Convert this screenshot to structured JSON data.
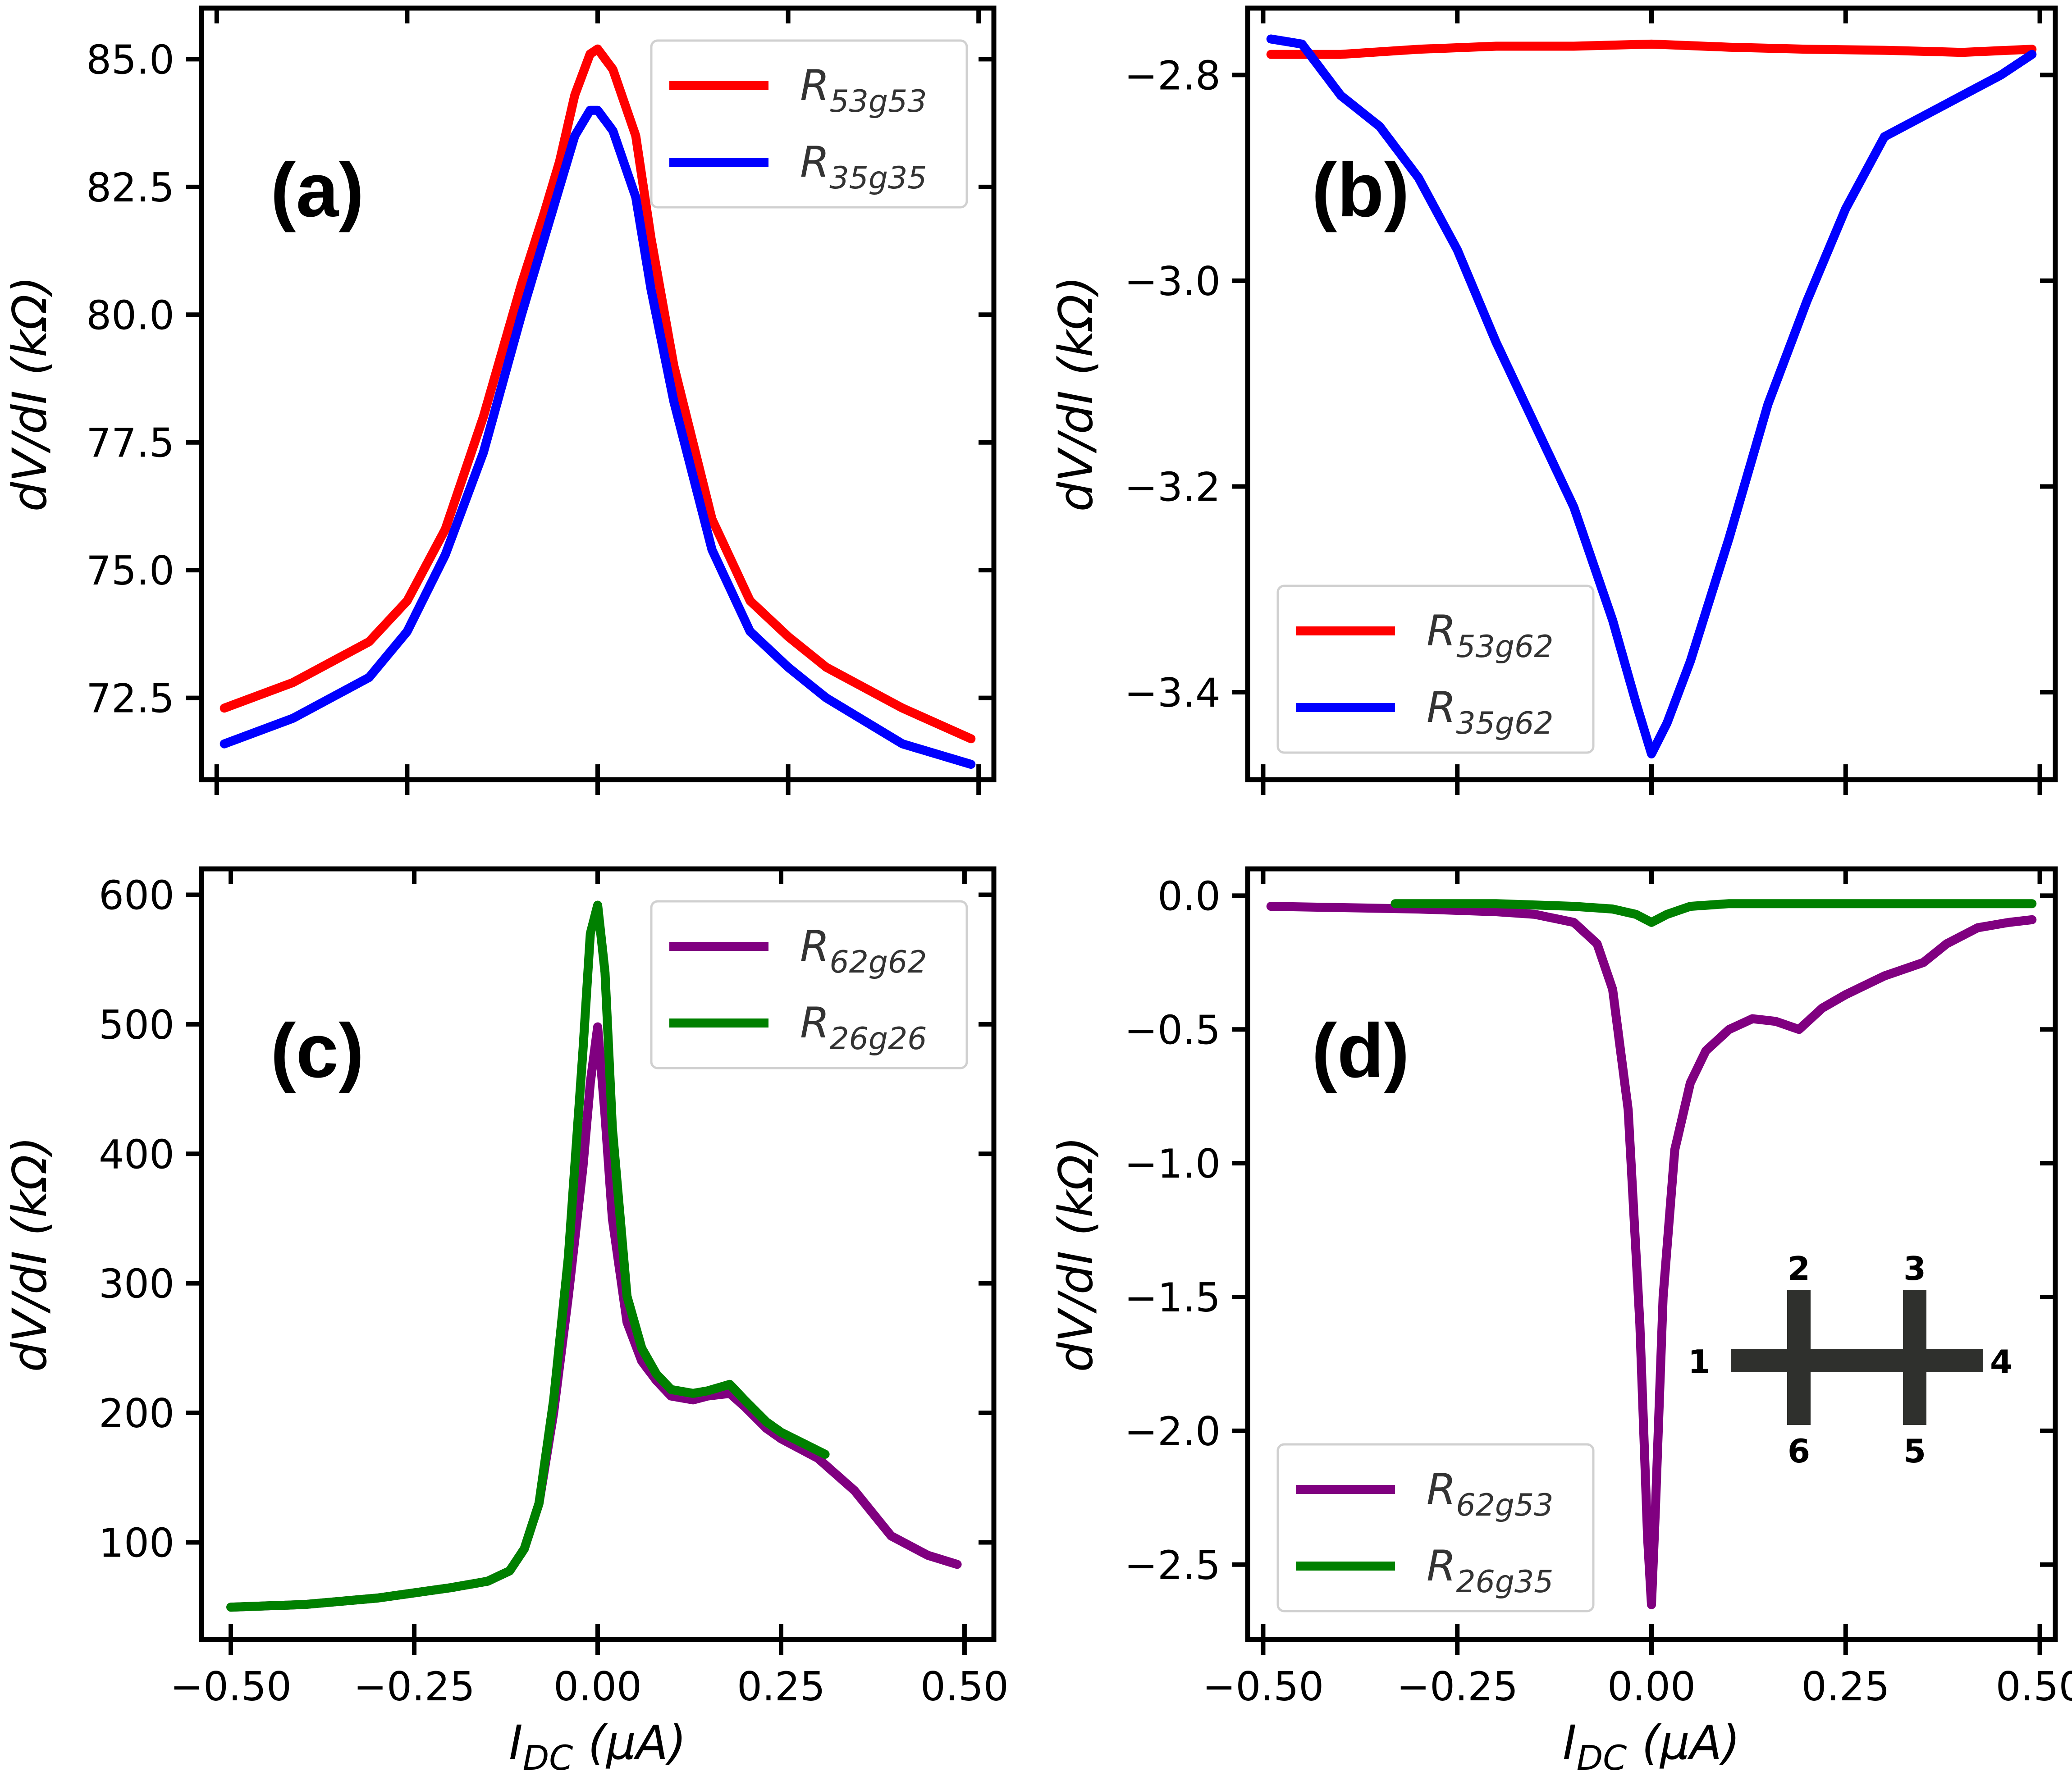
{
  "figure": {
    "background": "#ffffff"
  },
  "chart_data": [
    {
      "id": "a",
      "type": "line",
      "panel_label": "(a)",
      "xlabel": "I_DC (μA)",
      "xlabel_main": "I",
      "xlabel_sub": "DC",
      "xlabel_unit": " (μA)",
      "ylabel": "dV/dI (kΩ)",
      "xlim": [
        -0.52,
        0.52
      ],
      "ylim": [
        70.9,
        86.0
      ],
      "xticks": [
        -0.5,
        -0.25,
        0.0,
        0.25,
        0.5
      ],
      "xtick_labels": [
        "−0.50",
        "−0.25",
        "0.00",
        "0.25",
        "0.50"
      ],
      "show_xtick_labels": false,
      "yticks": [
        72.5,
        75.0,
        77.5,
        80.0,
        82.5,
        85.0
      ],
      "ytick_labels": [
        "72.5",
        "75.0",
        "77.5",
        "80.0",
        "82.5",
        "85.0"
      ],
      "legend_position": "top-right",
      "series": [
        {
          "name": "R53g53",
          "label_main": "R",
          "label_sub": "53g53",
          "color": "#ff0000",
          "x": [
            -0.49,
            -0.4,
            -0.3,
            -0.25,
            -0.2,
            -0.15,
            -0.1,
            -0.07,
            -0.05,
            -0.03,
            -0.01,
            0.0,
            0.02,
            0.05,
            0.07,
            0.1,
            0.15,
            0.2,
            0.25,
            0.3,
            0.4,
            0.49
          ],
          "y": [
            72.3,
            72.8,
            73.6,
            74.4,
            75.8,
            78.0,
            80.6,
            82.0,
            83.0,
            84.3,
            85.1,
            85.2,
            84.8,
            83.5,
            81.5,
            79.0,
            76.0,
            74.4,
            73.7,
            73.1,
            72.3,
            71.7
          ]
        },
        {
          "name": "R35g35",
          "label_main": "R",
          "label_sub": "35g35",
          "color": "#0000ff",
          "x": [
            -0.49,
            -0.4,
            -0.3,
            -0.25,
            -0.2,
            -0.15,
            -0.1,
            -0.07,
            -0.05,
            -0.03,
            -0.01,
            0.0,
            0.02,
            0.05,
            0.07,
            0.1,
            0.15,
            0.2,
            0.25,
            0.3,
            0.4,
            0.49
          ],
          "y": [
            71.6,
            72.1,
            72.9,
            73.8,
            75.3,
            77.3,
            80.0,
            81.5,
            82.5,
            83.5,
            84.0,
            84.0,
            83.6,
            82.3,
            80.5,
            78.3,
            75.4,
            73.8,
            73.1,
            72.5,
            71.6,
            71.2
          ]
        }
      ]
    },
    {
      "id": "b",
      "type": "line",
      "panel_label": "(b)",
      "xlabel": "I_DC (μA)",
      "xlabel_main": "I",
      "xlabel_sub": "DC",
      "xlabel_unit": " (μA)",
      "ylabel": "dV/dI (kΩ)",
      "xlim": [
        -0.52,
        0.52
      ],
      "ylim": [
        -3.485,
        -2.735
      ],
      "xticks": [
        -0.5,
        -0.25,
        0.0,
        0.25,
        0.5
      ],
      "xtick_labels": [
        "−0.50",
        "−0.25",
        "0.00",
        "0.25",
        "0.50"
      ],
      "show_xtick_labels": false,
      "yticks": [
        -3.4,
        -3.2,
        -3.0,
        -2.8
      ],
      "ytick_labels": [
        "−3.4",
        "−3.2",
        "−3.0",
        "−2.8"
      ],
      "legend_position": "bottom-left",
      "series": [
        {
          "name": "R53g62",
          "label_main": "R",
          "label_sub": "53g62",
          "color": "#ff0000",
          "x": [
            -0.49,
            -0.4,
            -0.3,
            -0.2,
            -0.1,
            0.0,
            0.1,
            0.2,
            0.3,
            0.4,
            0.49
          ],
          "y": [
            -2.78,
            -2.78,
            -2.775,
            -2.772,
            -2.772,
            -2.77,
            -2.773,
            -2.775,
            -2.776,
            -2.778,
            -2.775
          ]
        },
        {
          "name": "R35g62",
          "label_main": "R",
          "label_sub": "35g62",
          "color": "#0000ff",
          "x": [
            -0.49,
            -0.45,
            -0.4,
            -0.35,
            -0.3,
            -0.25,
            -0.2,
            -0.15,
            -0.1,
            -0.05,
            -0.02,
            0.0,
            0.02,
            0.05,
            0.1,
            0.15,
            0.2,
            0.25,
            0.3,
            0.35,
            0.4,
            0.45,
            0.49
          ],
          "y": [
            -2.765,
            -2.77,
            -2.82,
            -2.85,
            -2.9,
            -2.97,
            -3.06,
            -3.14,
            -3.22,
            -3.33,
            -3.41,
            -3.46,
            -3.43,
            -3.37,
            -3.25,
            -3.12,
            -3.02,
            -2.93,
            -2.86,
            -2.84,
            -2.82,
            -2.8,
            -2.78
          ]
        }
      ]
    },
    {
      "id": "c",
      "type": "line",
      "panel_label": "(c)",
      "xlabel": "I_DC (μA)",
      "xlabel_main": "I",
      "xlabel_sub": "DC",
      "xlabel_unit": " (μA)",
      "ylabel": "dV/dI (kΩ)",
      "xlim": [
        -0.54,
        0.54
      ],
      "ylim": [
        25,
        620
      ],
      "xticks": [
        -0.5,
        -0.25,
        0.0,
        0.25,
        0.5
      ],
      "xtick_labels": [
        "−0.50",
        "−0.25",
        "0.00",
        "0.25",
        "0.50"
      ],
      "show_xtick_labels": true,
      "yticks": [
        100,
        200,
        300,
        400,
        500,
        600
      ],
      "ytick_labels": [
        "100",
        "200",
        "300",
        "400",
        "500",
        "600"
      ],
      "legend_position": "top-right",
      "series": [
        {
          "name": "R62g62",
          "label_main": "R",
          "label_sub": "62g62",
          "color": "#800080",
          "x": [
            -0.5,
            -0.4,
            -0.3,
            -0.2,
            -0.15,
            -0.12,
            -0.1,
            -0.08,
            -0.06,
            -0.04,
            -0.02,
            -0.01,
            0.0,
            0.01,
            0.02,
            0.04,
            0.06,
            0.08,
            0.1,
            0.13,
            0.15,
            0.18,
            0.2,
            0.23,
            0.25,
            0.3,
            0.35,
            0.4,
            0.45,
            0.49
          ],
          "y": [
            50,
            52,
            57,
            65,
            70,
            78,
            95,
            130,
            200,
            290,
            390,
            455,
            498,
            430,
            350,
            270,
            240,
            225,
            213,
            210,
            213,
            215,
            205,
            188,
            180,
            165,
            140,
            105,
            90,
            83
          ]
        },
        {
          "name": "R26g26",
          "label_main": "R",
          "label_sub": "26g26",
          "color": "#008000",
          "x": [
            -0.5,
            -0.4,
            -0.3,
            -0.2,
            -0.15,
            -0.12,
            -0.1,
            -0.08,
            -0.06,
            -0.04,
            -0.02,
            -0.01,
            0.0,
            0.01,
            0.02,
            0.04,
            0.06,
            0.08,
            0.1,
            0.13,
            0.15,
            0.18,
            0.2,
            0.23,
            0.25,
            0.31
          ],
          "y": [
            50,
            52,
            57,
            65,
            70,
            78,
            95,
            130,
            210,
            320,
            480,
            570,
            592,
            540,
            420,
            290,
            250,
            230,
            218,
            215,
            217,
            222,
            210,
            193,
            185,
            168
          ]
        }
      ]
    },
    {
      "id": "d",
      "type": "line",
      "panel_label": "(d)",
      "xlabel": "I_DC (μA)",
      "xlabel_main": "I",
      "xlabel_sub": "DC",
      "xlabel_unit": " (μA)",
      "ylabel": "dV/dI (kΩ)",
      "xlim": [
        -0.52,
        0.52
      ],
      "ylim": [
        -2.78,
        0.1
      ],
      "xticks": [
        -0.5,
        -0.25,
        0.0,
        0.25,
        0.5
      ],
      "xtick_labels": [
        "−0.50",
        "−0.25",
        "0.00",
        "0.25",
        "0.50"
      ],
      "show_xtick_labels": true,
      "yticks": [
        -2.5,
        -2.0,
        -1.5,
        -1.0,
        -0.5,
        0.0
      ],
      "ytick_labels": [
        "−2.5",
        "−2.0",
        "−1.5",
        "−1.0",
        "−0.5",
        "0.0"
      ],
      "legend_position": "bottom-left",
      "series": [
        {
          "name": "R62g53",
          "label_main": "R",
          "label_sub": "62g53",
          "color": "#800080",
          "x": [
            -0.49,
            -0.3,
            -0.2,
            -0.15,
            -0.1,
            -0.07,
            -0.05,
            -0.03,
            -0.015,
            -0.005,
            0.0,
            0.005,
            0.015,
            0.03,
            0.05,
            0.07,
            0.1,
            0.13,
            0.16,
            0.19,
            0.22,
            0.25,
            0.3,
            0.35,
            0.38,
            0.42,
            0.46,
            0.49
          ],
          "y": [
            -0.04,
            -0.05,
            -0.06,
            -0.07,
            -0.1,
            -0.18,
            -0.35,
            -0.8,
            -1.6,
            -2.4,
            -2.65,
            -2.3,
            -1.5,
            -0.95,
            -0.7,
            -0.58,
            -0.5,
            -0.46,
            -0.47,
            -0.5,
            -0.42,
            -0.37,
            -0.3,
            -0.25,
            -0.18,
            -0.12,
            -0.1,
            -0.09
          ]
        },
        {
          "name": "R26g35",
          "label_main": "R",
          "label_sub": "26g35",
          "color": "#008000",
          "x": [
            -0.33,
            -0.2,
            -0.1,
            -0.05,
            -0.02,
            0.0,
            0.02,
            0.05,
            0.1,
            0.2,
            0.3,
            0.4,
            0.49
          ],
          "y": [
            -0.03,
            -0.03,
            -0.04,
            -0.05,
            -0.07,
            -0.1,
            -0.07,
            -0.04,
            -0.03,
            -0.03,
            -0.03,
            -0.03,
            -0.03
          ]
        }
      ],
      "inset": {
        "description": "six-terminal double Hall-bar device",
        "terminal_labels": [
          "1",
          "2",
          "3",
          "4",
          "5",
          "6"
        ],
        "color": "#2f302d"
      }
    }
  ]
}
